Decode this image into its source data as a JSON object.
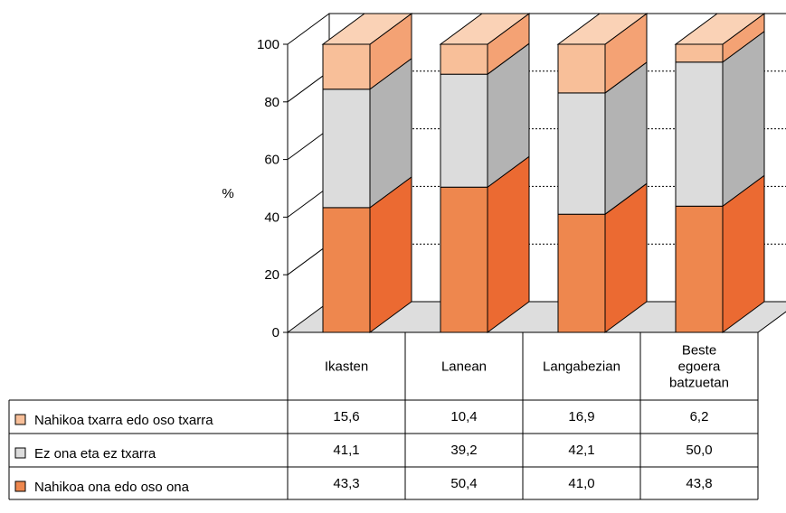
{
  "chart_data": {
    "type": "bar",
    "stacked": true,
    "three_d": true,
    "ylabel": "%",
    "ylim": [
      0,
      100
    ],
    "yticks": [
      0,
      20,
      40,
      60,
      80,
      100
    ],
    "categories": [
      [
        "Ikasten"
      ],
      [
        "Lanean"
      ],
      [
        "Langabezian"
      ],
      [
        "Beste",
        "egoera",
        "batzuetan"
      ]
    ],
    "series": [
      {
        "name": "Nahikoa ona edo oso ona",
        "values": [
          43.3,
          50.4,
          41.0,
          43.8
        ],
        "labels": [
          "43,3",
          "50,4",
          "41,0",
          "43,8"
        ],
        "color": "#ee874e",
        "side_color": "#eb6a32",
        "top_color": "#f39a6a"
      },
      {
        "name": "Ez ona eta ez txarra",
        "values": [
          41.1,
          39.2,
          42.1,
          50.0
        ],
        "labels": [
          "41,1",
          "39,2",
          "42,1",
          "50,0"
        ],
        "color": "#dcdcdc",
        "side_color": "#b3b3b3",
        "top_color": "#c8c8c8"
      },
      {
        "name": "Nahikoa txarra edo oso txarra",
        "values": [
          15.6,
          10.4,
          16.9,
          6.2
        ],
        "labels": [
          "15,6",
          "10,4",
          "16,9",
          "6,2"
        ],
        "color": "#f8bf99",
        "side_color": "#f4a274",
        "top_color": "#fad2b6"
      }
    ],
    "table_order": [
      2,
      1,
      0
    ]
  }
}
